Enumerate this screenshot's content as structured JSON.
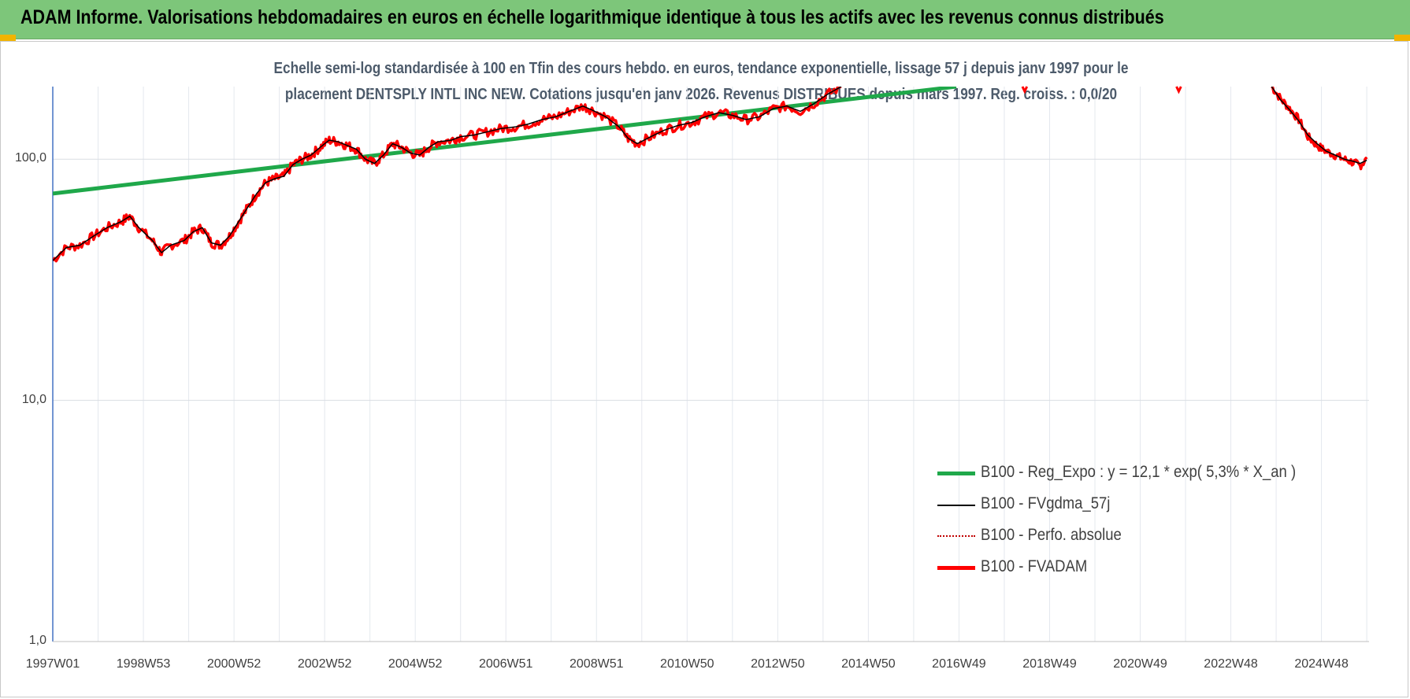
{
  "header": {
    "title": "ADAM Informe. Valorisations hebdomadaires en euros en échelle logarithmique identique à tous les actifs avec les revenus connus distribués"
  },
  "chart_data": {
    "type": "line",
    "title_line1": "Echelle semi-log standardisée à 100 en Tfin des cours hebdo. en euros, tendance exponentielle, lissage 57 j depuis janv 1997 pour le",
    "title_line2": "placement DENTSPLY INTL INC NEW. Cotations jusqu'en janv 2026. Revenus DISTRIBUES depuis mars 1997. Reg. croiss. : 0,0/20",
    "y_scale": "log",
    "ylim": [
      1,
      200
    ],
    "y_ticks": [
      {
        "value": 100,
        "label": "100,0"
      },
      {
        "value": 10,
        "label": "10,0"
      },
      {
        "value": 1,
        "label": "1,0"
      }
    ],
    "x_range": [
      1997.0,
      2026.05
    ],
    "x_ticks": [
      {
        "x": 1997.0,
        "label": "1997W01"
      },
      {
        "x": 1999.0,
        "label": "1998W53"
      },
      {
        "x": 2001.0,
        "label": "2000W52"
      },
      {
        "x": 2003.0,
        "label": "2002W52"
      },
      {
        "x": 2005.0,
        "label": "2004W52"
      },
      {
        "x": 2007.0,
        "label": "2006W51"
      },
      {
        "x": 2009.0,
        "label": "2008W51"
      },
      {
        "x": 2011.0,
        "label": "2010W50"
      },
      {
        "x": 2013.0,
        "label": "2012W50"
      },
      {
        "x": 2015.0,
        "label": "2014W50"
      },
      {
        "x": 2017.0,
        "label": "2016W49"
      },
      {
        "x": 2019.0,
        "label": "2018W49"
      },
      {
        "x": 2021.0,
        "label": "2020W49"
      },
      {
        "x": 2023.0,
        "label": "2022W48"
      },
      {
        "x": 2025.0,
        "label": "2024W48"
      }
    ],
    "grid": true,
    "legend_position": "bottom-right",
    "series": [
      {
        "name": "B100 - Reg_Expo : y = 12,1 * exp( 5,3% *  X_an )",
        "color": "#1fa84a",
        "style": "thick",
        "points": [
          [
            1997.0,
            72
          ],
          [
            2016.94,
            200
          ]
        ]
      },
      {
        "name": "B100 - FVgdma_57j",
        "color": "#000000",
        "style": "thin",
        "points": []
      },
      {
        "name": "B100 - Perfo. absolue",
        "color": "#c00000",
        "style": "dotted",
        "points": []
      },
      {
        "name": "B100 - FVADAM",
        "color": "#ff0000",
        "style": "thick",
        "points": [
          [
            1997.0,
            38
          ],
          [
            1997.3,
            43
          ],
          [
            1997.6,
            44
          ],
          [
            1997.9,
            48
          ],
          [
            1998.2,
            52
          ],
          [
            1998.5,
            55
          ],
          [
            1998.7,
            58
          ],
          [
            1998.9,
            52
          ],
          [
            1999.2,
            46
          ],
          [
            1999.4,
            41
          ],
          [
            1999.6,
            44
          ],
          [
            1999.9,
            46
          ],
          [
            2000.1,
            50
          ],
          [
            2000.3,
            52
          ],
          [
            2000.5,
            45
          ],
          [
            2000.7,
            44
          ],
          [
            2000.9,
            48
          ],
          [
            2001.1,
            55
          ],
          [
            2001.3,
            63
          ],
          [
            2001.5,
            72
          ],
          [
            2001.7,
            80
          ],
          [
            2001.9,
            83
          ],
          [
            2002.1,
            85
          ],
          [
            2002.3,
            95
          ],
          [
            2002.5,
            100
          ],
          [
            2002.7,
            104
          ],
          [
            2002.9,
            112
          ],
          [
            2003.1,
            120
          ],
          [
            2003.3,
            118
          ],
          [
            2003.5,
            114
          ],
          [
            2003.7,
            110
          ],
          [
            2003.9,
            100
          ],
          [
            2004.1,
            96
          ],
          [
            2004.3,
            104
          ],
          [
            2004.5,
            116
          ],
          [
            2004.7,
            112
          ],
          [
            2004.9,
            106
          ],
          [
            2005.1,
            104
          ],
          [
            2005.3,
            112
          ],
          [
            2005.5,
            118
          ],
          [
            2005.8,
            120
          ],
          [
            2006.0,
            124
          ],
          [
            2006.3,
            126
          ],
          [
            2006.6,
            130
          ],
          [
            2006.9,
            134
          ],
          [
            2007.2,
            136
          ],
          [
            2007.5,
            140
          ],
          [
            2007.8,
            146
          ],
          [
            2008.1,
            150
          ],
          [
            2008.4,
            158
          ],
          [
            2008.7,
            166
          ],
          [
            2008.9,
            160
          ],
          [
            2009.2,
            150
          ],
          [
            2009.5,
            136
          ],
          [
            2009.7,
            122
          ],
          [
            2009.9,
            116
          ],
          [
            2010.2,
            124
          ],
          [
            2010.5,
            132
          ],
          [
            2010.8,
            138
          ],
          [
            2011.1,
            142
          ],
          [
            2011.4,
            150
          ],
          [
            2011.7,
            156
          ],
          [
            2012.0,
            152
          ],
          [
            2012.3,
            146
          ],
          [
            2012.6,
            150
          ],
          [
            2012.9,
            162
          ],
          [
            2013.2,
            166
          ],
          [
            2013.5,
            158
          ],
          [
            2013.8,
            170
          ],
          [
            2014.1,
            186
          ],
          [
            2014.4,
            200
          ]
        ]
      }
    ],
    "fvadam_recent": [
      [
        2023.9,
        200
      ],
      [
        2024.1,
        178
      ],
      [
        2024.3,
        162
      ],
      [
        2024.5,
        146
      ],
      [
        2024.7,
        124
      ],
      [
        2024.9,
        114
      ],
      [
        2025.1,
        108
      ],
      [
        2025.3,
        104
      ],
      [
        2025.5,
        100
      ],
      [
        2025.7,
        97
      ],
      [
        2025.85,
        94
      ],
      [
        2026.0,
        100
      ]
    ],
    "smooth_recent": [
      [
        2023.9,
        200
      ],
      [
        2024.1,
        176
      ],
      [
        2024.3,
        160
      ],
      [
        2024.5,
        144
      ],
      [
        2024.7,
        126
      ],
      [
        2024.9,
        116
      ],
      [
        2025.1,
        108
      ],
      [
        2025.3,
        104
      ],
      [
        2025.5,
        100
      ],
      [
        2025.7,
        98
      ],
      [
        2025.85,
        96
      ],
      [
        2026.0,
        99
      ]
    ]
  }
}
